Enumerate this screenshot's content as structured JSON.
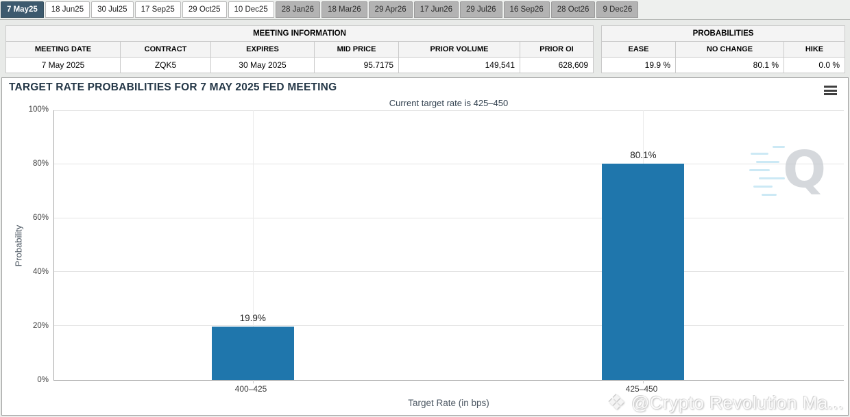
{
  "tabs": {
    "items": [
      {
        "label": "7 May25",
        "state": "selected"
      },
      {
        "label": "18 Jun25",
        "state": "normal"
      },
      {
        "label": "30 Jul25",
        "state": "normal"
      },
      {
        "label": "17 Sep25",
        "state": "normal"
      },
      {
        "label": "29 Oct25",
        "state": "normal"
      },
      {
        "label": "10 Dec25",
        "state": "normal"
      },
      {
        "label": "28 Jan26",
        "state": "disabled"
      },
      {
        "label": "18 Mar26",
        "state": "disabled"
      },
      {
        "label": "29 Apr26",
        "state": "disabled"
      },
      {
        "label": "17 Jun26",
        "state": "disabled"
      },
      {
        "label": "29 Jul26",
        "state": "disabled"
      },
      {
        "label": "16 Sep26",
        "state": "disabled"
      },
      {
        "label": "28 Oct26",
        "state": "disabled"
      },
      {
        "label": "9 Dec26",
        "state": "disabled"
      }
    ]
  },
  "meeting_info": {
    "title": "MEETING INFORMATION",
    "columns": [
      "MEETING DATE",
      "CONTRACT",
      "EXPIRES",
      "MID PRICE",
      "PRIOR VOLUME",
      "PRIOR OI"
    ],
    "row": {
      "meeting_date": "7 May 2025",
      "contract": "ZQK5",
      "expires": "30 May 2025",
      "mid_price": "95.7175",
      "prior_volume": "149,541",
      "prior_oi": "628,609"
    }
  },
  "probabilities": {
    "title": "PROBABILITIES",
    "columns": [
      "EASE",
      "NO CHANGE",
      "HIKE"
    ],
    "row": {
      "ease": "19.9 %",
      "no_change": "80.1 %",
      "hike": "0.0 %"
    }
  },
  "chart_data": {
    "type": "bar",
    "title": "TARGET RATE PROBABILITIES FOR 7 MAY 2025 FED MEETING",
    "subtitle": "Current target rate is 425–450",
    "categories": [
      "400–425",
      "425–450"
    ],
    "values": [
      19.9,
      80.1
    ],
    "value_labels": [
      "19.9%",
      "80.1%"
    ],
    "xlabel": "Target Rate (in bps)",
    "ylabel": "Probability",
    "ylim": [
      0,
      100
    ],
    "yticks": [
      "0%",
      "20%",
      "40%",
      "60%",
      "80%",
      "100%"
    ],
    "bar_color": "#1f76ac",
    "grid": true,
    "legend": false
  },
  "colors": {
    "selected_tab": "#3d5a6e",
    "disabled_tab": "#b3b3b3",
    "bar": "#1f76ac",
    "title_text": "#243747"
  },
  "watermarks": {
    "q_logo": "Q",
    "credit": "@Crypto Revolution Ma...",
    "credit_icon": "❖"
  }
}
